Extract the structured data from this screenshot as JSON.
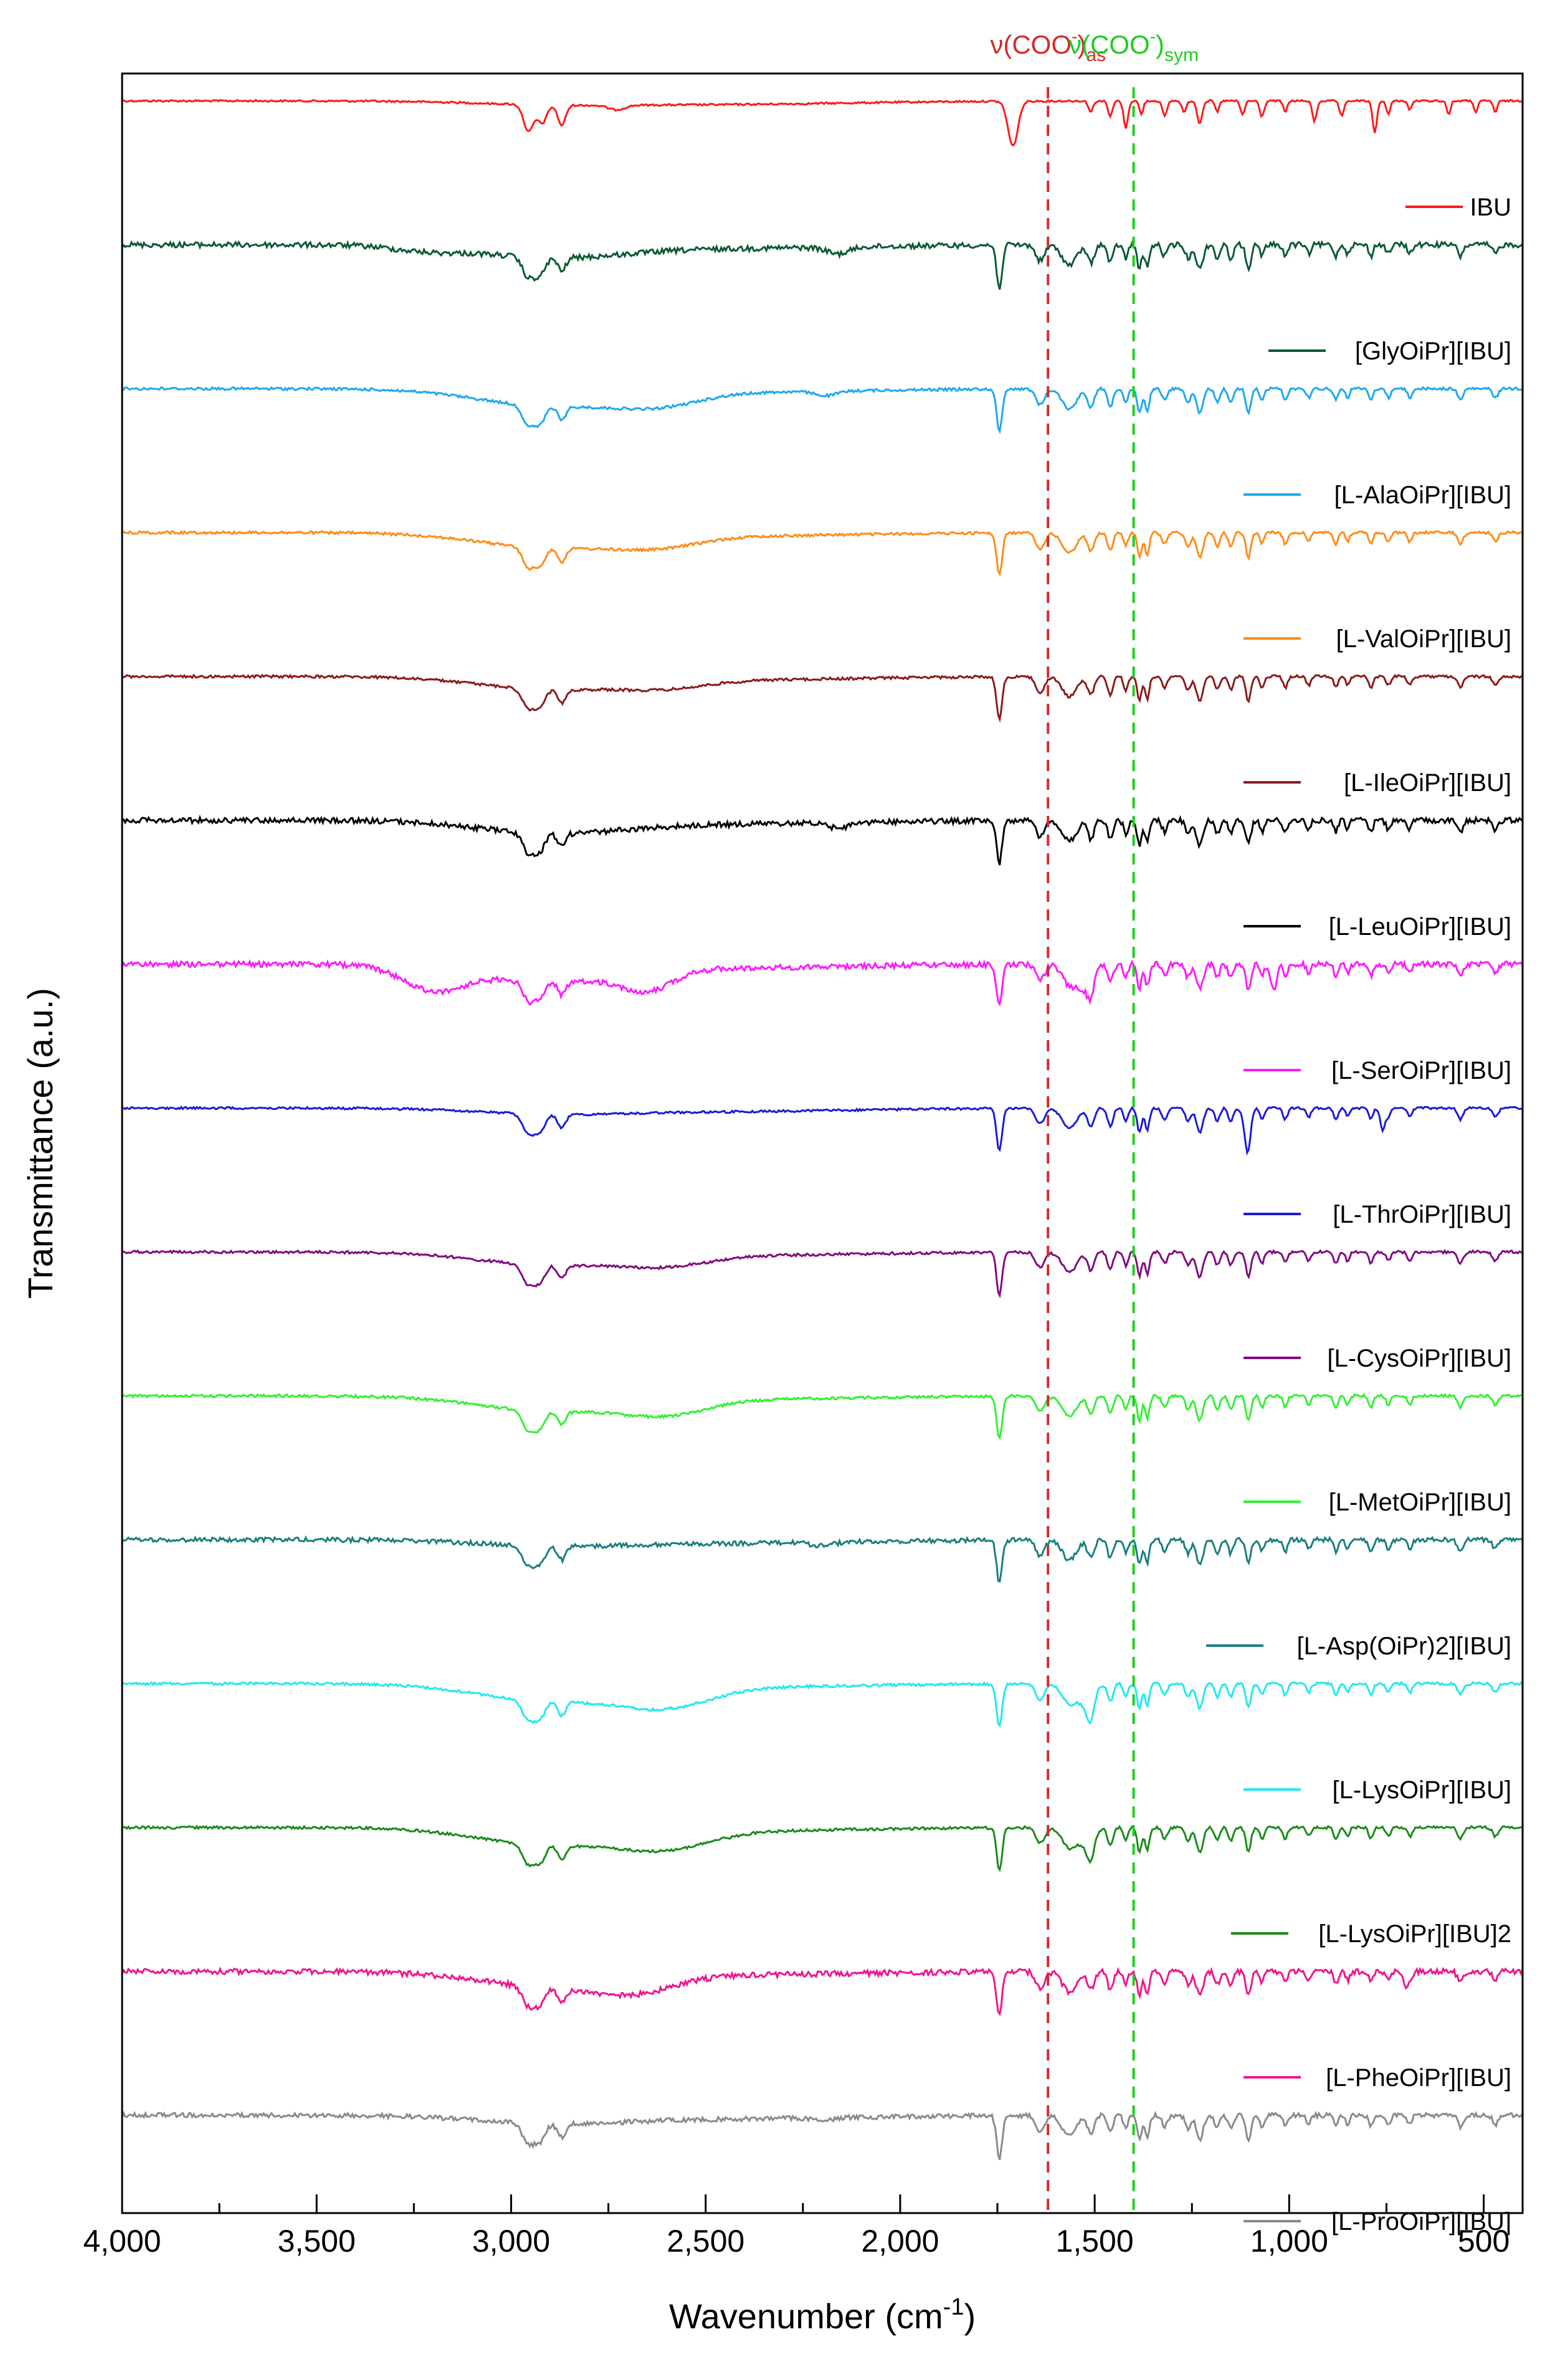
{
  "chart_data": {
    "type": "line",
    "title": "",
    "xlabel": "Wavenumber (cm-1)",
    "xlabel_main": "Wavenumber (cm",
    "xlabel_sup": "-1",
    "xlabel_close": ")",
    "ylabel": "Transmittance (a.u.)",
    "xlim": [
      4000,
      400
    ],
    "x_reversed": true,
    "x_ticks": [
      4000,
      3500,
      3000,
      2500,
      2000,
      1500,
      1000,
      500
    ],
    "x_tick_labels": [
      "4,000",
      "3,500",
      "3,000",
      "2,500",
      "2,000",
      "1,500",
      "1,000",
      "500"
    ],
    "grid": false,
    "legend": "per-trace labels on right",
    "reference_lines": [
      {
        "name": "asymmetric",
        "x": 1620,
        "color": "#d42a2a",
        "label_main": "ν(COO",
        "label_sup": "-",
        "label_close": ")",
        "label_sub": "as"
      },
      {
        "name": "symmetric",
        "x": 1400,
        "color": "#22cc22",
        "label_main": "ν(COO",
        "label_sup": "-",
        "label_close": ")",
        "label_sub": "sym"
      }
    ],
    "series": [
      {
        "name": "IBU",
        "color": "#ff1a1a"
      },
      {
        "name": "[GlyOiPr][IBU]",
        "color": "#0c5a32"
      },
      {
        "name": "[L-AlaOiPr][IBU]",
        "color": "#1ea8f0"
      },
      {
        "name": "[L-ValOiPr][IBU]",
        "color": "#ff8c1a"
      },
      {
        "name": "[L-IleOiPr][IBU]",
        "color": "#8b1a1a"
      },
      {
        "name": "[L-LeuOiPr][IBU]",
        "color": "#000000"
      },
      {
        "name": "[L-SerOiPr][IBU]",
        "color": "#ff1aff"
      },
      {
        "name": "[L-ThrOiPr][IBU]",
        "color": "#1a1ad9"
      },
      {
        "name": "[L-CysOiPr][IBU]",
        "color": "#800a80"
      },
      {
        "name": "[L-MetOiPr][IBU]",
        "color": "#33f033"
      },
      {
        "name": "[L-Asp(OiPr)2][IBU]",
        "color": "#1a7f7f"
      },
      {
        "name": "[L-LysOiPr][IBU]",
        "color": "#22e8f0"
      },
      {
        "name": "[L-LysOiPr][IBU]2",
        "color": "#1a8a1a"
      },
      {
        "name": "[L-PheOiPr][IBU]",
        "color": "#f0158c"
      },
      {
        "name": "[L-ProOiPr][IBU]",
        "color": "#8a8a8a"
      }
    ]
  }
}
